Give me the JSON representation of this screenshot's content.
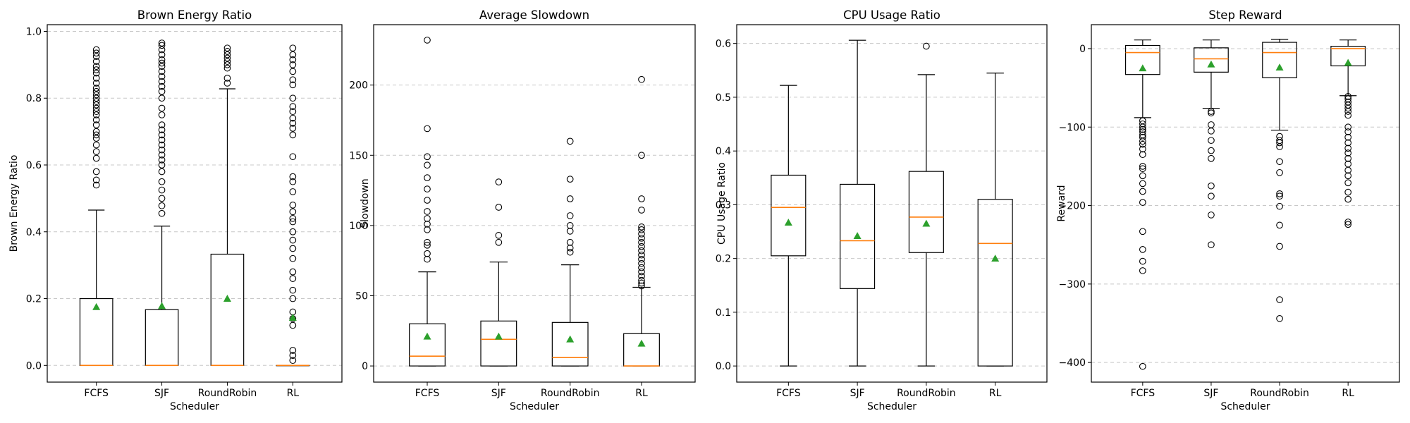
{
  "figure": {
    "xlabel": "Scheduler"
  },
  "chart_data": [
    {
      "type": "box",
      "title": "Brown Energy Ratio",
      "xlabel": "Scheduler",
      "ylabel": "Brown Energy Ratio",
      "categories": [
        "FCFS",
        "SJF",
        "RoundRobin",
        "RL"
      ],
      "ylim": [
        -0.05,
        1.02
      ],
      "yticks": [
        0.0,
        0.2,
        0.4,
        0.6,
        0.8,
        1.0
      ],
      "ytick_labels": [
        "0.0",
        "0.2",
        "0.4",
        "0.6",
        "0.8",
        "1.0"
      ],
      "grid": "y-dashed",
      "boxes": [
        {
          "q1": 0.0,
          "median": 0.0,
          "q3": 0.2,
          "whisker_low": 0.0,
          "whisker_high": 0.465,
          "mean": 0.175,
          "outliers": [
            0.54,
            0.555,
            0.58,
            0.62,
            0.64,
            0.66,
            0.68,
            0.69,
            0.7,
            0.72,
            0.735,
            0.75,
            0.76,
            0.77,
            0.78,
            0.79,
            0.8,
            0.81,
            0.82,
            0.83,
            0.845,
            0.86,
            0.875,
            0.885,
            0.895,
            0.91,
            0.925,
            0.935,
            0.945
          ]
        },
        {
          "q1": 0.0,
          "median": 0.0,
          "q3": 0.167,
          "whisker_low": 0.0,
          "whisker_high": 0.417,
          "mean": 0.178,
          "outliers": [
            0.455,
            0.478,
            0.5,
            0.525,
            0.55,
            0.58,
            0.6,
            0.615,
            0.63,
            0.645,
            0.66,
            0.675,
            0.69,
            0.705,
            0.72,
            0.75,
            0.77,
            0.8,
            0.82,
            0.835,
            0.85,
            0.865,
            0.88,
            0.895,
            0.905,
            0.915,
            0.93,
            0.945,
            0.958,
            0.965
          ]
        },
        {
          "q1": 0.0,
          "median": 0.0,
          "q3": 0.333,
          "whisker_low": 0.0,
          "whisker_high": 0.828,
          "mean": 0.2,
          "outliers": [
            0.845,
            0.86,
            0.89,
            0.9,
            0.91,
            0.92,
            0.93,
            0.94,
            0.95
          ]
        },
        {
          "q1": 0.0,
          "median": 0.0,
          "q3": 0.0,
          "whisker_low": 0.0,
          "whisker_high": 0.0,
          "mean": 0.143,
          "outliers": [
            0.015,
            0.03,
            0.045,
            0.12,
            0.14,
            0.16,
            0.2,
            0.225,
            0.26,
            0.28,
            0.32,
            0.35,
            0.375,
            0.4,
            0.43,
            0.44,
            0.46,
            0.48,
            0.52,
            0.55,
            0.565,
            0.625,
            0.69,
            0.71,
            0.725,
            0.74,
            0.76,
            0.775,
            0.8,
            0.84,
            0.855,
            0.88,
            0.9,
            0.915,
            0.93,
            0.95
          ]
        }
      ]
    },
    {
      "type": "box",
      "title": "Average Slowdown",
      "xlabel": "Scheduler",
      "ylabel": "Slowdown",
      "categories": [
        "FCFS",
        "SJF",
        "RoundRobin",
        "RL"
      ],
      "ylim": [
        -11.5,
        243
      ],
      "yticks": [
        0,
        50,
        100,
        150,
        200
      ],
      "ytick_labels": [
        "0",
        "50",
        "100",
        "150",
        "200"
      ],
      "grid": "y-dashed",
      "boxes": [
        {
          "q1": 0,
          "median": 7,
          "q3": 30,
          "whisker_low": 0,
          "whisker_high": 67,
          "mean": 21,
          "outliers": [
            76,
            80,
            86,
            88,
            97,
            101,
            105,
            110,
            118,
            126,
            134,
            143,
            149,
            169,
            232
          ]
        },
        {
          "q1": 0,
          "median": 19,
          "q3": 32,
          "whisker_low": 0,
          "whisker_high": 74,
          "mean": 21,
          "outliers": [
            88,
            93,
            113,
            131
          ]
        },
        {
          "q1": 0,
          "median": 6,
          "q3": 31,
          "whisker_low": 0,
          "whisker_high": 72,
          "mean": 19,
          "outliers": [
            81,
            84,
            88,
            96,
            100,
            107,
            119,
            133,
            160
          ]
        },
        {
          "q1": 0,
          "median": 0,
          "q3": 23,
          "whisker_low": 0,
          "whisker_high": 56,
          "mean": 16,
          "outliers": [
            57,
            59,
            61,
            64,
            67,
            70,
            73,
            76,
            79,
            82,
            85,
            88,
            91,
            94,
            97,
            99,
            111,
            119,
            150,
            204
          ]
        }
      ]
    },
    {
      "type": "box",
      "title": "CPU Usage Ratio",
      "xlabel": "Scheduler",
      "ylabel": "CPU Usage Ratio",
      "categories": [
        "FCFS",
        "SJF",
        "RoundRobin",
        "RL"
      ],
      "ylim": [
        -0.03,
        0.635
      ],
      "yticks": [
        0.0,
        0.1,
        0.2,
        0.3,
        0.4,
        0.5,
        0.6
      ],
      "ytick_labels": [
        "0.0",
        "0.1",
        "0.2",
        "0.3",
        "0.4",
        "0.5",
        "0.6"
      ],
      "grid": "y-dashed",
      "boxes": [
        {
          "q1": 0.205,
          "median": 0.295,
          "q3": 0.355,
          "whisker_low": 0.0,
          "whisker_high": 0.522,
          "mean": 0.267,
          "outliers": []
        },
        {
          "q1": 0.144,
          "median": 0.233,
          "q3": 0.338,
          "whisker_low": 0.0,
          "whisker_high": 0.606,
          "mean": 0.242,
          "outliers": []
        },
        {
          "q1": 0.211,
          "median": 0.277,
          "q3": 0.362,
          "whisker_low": 0.0,
          "whisker_high": 0.542,
          "mean": 0.265,
          "outliers": [
            0.595
          ]
        },
        {
          "q1": 0.0,
          "median": 0.228,
          "q3": 0.31,
          "whisker_low": 0.0,
          "whisker_high": 0.545,
          "mean": 0.2,
          "outliers": []
        }
      ]
    },
    {
      "type": "box",
      "title": "Step Reward",
      "xlabel": "Scheduler",
      "ylabel": "Reward",
      "categories": [
        "FCFS",
        "SJF",
        "RoundRobin",
        "RL"
      ],
      "ylim": [
        -425,
        30.5
      ],
      "yticks": [
        -400,
        -300,
        -200,
        -100,
        0
      ],
      "ytick_labels": [
        "−400",
        "−300",
        "−200",
        "−100",
        "0"
      ],
      "grid": "y-dashed",
      "boxes": [
        {
          "q1": -33,
          "median": -5,
          "q3": 4,
          "whisker_low": -88,
          "whisker_high": 11,
          "mean": -25,
          "outliers": [
            -92,
            -96,
            -100,
            -103,
            -106,
            -110,
            -113,
            -118,
            -122,
            -128,
            -135,
            -150,
            -153,
            -162,
            -172,
            -182,
            -196,
            -233,
            -256,
            -271,
            -283,
            -405
          ]
        },
        {
          "q1": -30,
          "median": -13,
          "q3": 1,
          "whisker_low": -76,
          "whisker_high": 11,
          "mean": -20,
          "outliers": [
            -80,
            -82,
            -97,
            -105,
            -117,
            -130,
            -140,
            -175,
            -188,
            -212,
            -250
          ]
        },
        {
          "q1": -37,
          "median": -5,
          "q3": 8,
          "whisker_low": -104,
          "whisker_high": 12,
          "mean": -24,
          "outliers": [
            -112,
            -117,
            -120,
            -125,
            -144,
            -158,
            -185,
            -188,
            -201,
            -225,
            -252,
            -320,
            -344
          ]
        },
        {
          "q1": -22,
          "median": 0,
          "q3": 3,
          "whisker_low": -60,
          "whisker_high": 11,
          "mean": -18,
          "outliers": [
            -61,
            -64,
            -68,
            -72,
            -76,
            -80,
            -85,
            -100,
            -106,
            -113,
            -120,
            -127,
            -133,
            -140,
            -147,
            -155,
            -162,
            -171,
            -183,
            -192,
            -221,
            -224
          ]
        }
      ]
    }
  ]
}
